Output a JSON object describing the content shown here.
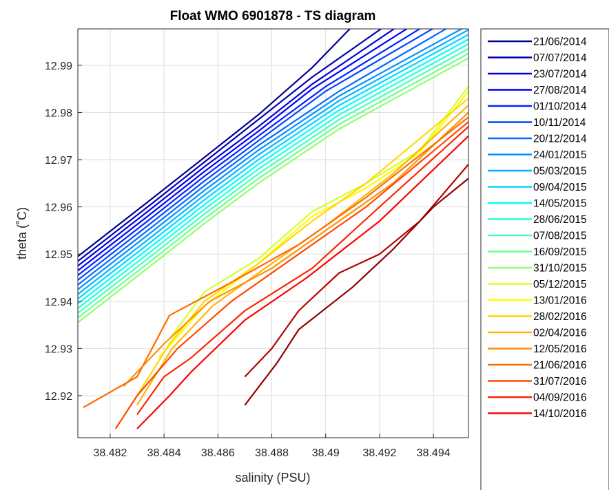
{
  "chart_data": {
    "type": "line",
    "title": "Float WMO 6901878 - TS diagram",
    "xlabel": "salinity (PSU)",
    "ylabel": "theta (˚C)",
    "xlim": [
      38.4808,
      38.4953
    ],
    "ylim": [
      12.9111,
      12.9977
    ],
    "xticks": [
      38.482,
      38.484,
      38.486,
      38.488,
      38.49,
      38.492,
      38.494
    ],
    "xtick_labels": [
      "38.482",
      "38.484",
      "38.486",
      "38.488",
      "38.49",
      "38.492",
      "38.494"
    ],
    "yticks": [
      12.92,
      12.93,
      12.94,
      12.95,
      12.96,
      12.97,
      12.98,
      12.99
    ],
    "ytick_labels": [
      "12.92",
      "12.93",
      "12.94",
      "12.95",
      "12.96",
      "12.97",
      "12.98",
      "12.99"
    ],
    "grid": true,
    "legend_position": "outside-right",
    "colormap": "jet",
    "series": [
      {
        "name": "21/06/2014",
        "color": "#00008f",
        "x": [
          38.4808,
          38.4835,
          38.4855,
          38.4875,
          38.4895,
          38.4912
        ],
        "y": [
          12.9495,
          12.9615,
          12.9705,
          12.9795,
          12.9895,
          12.9995
        ]
      },
      {
        "name": "07/07/2014",
        "color": "#0000b4",
        "x": [
          38.4808,
          38.4835,
          38.4855,
          38.4875,
          38.4895,
          38.4925
        ],
        "y": [
          12.9485,
          12.9605,
          12.9695,
          12.9785,
          12.9875,
          12.9995
        ]
      },
      {
        "name": "23/07/2014",
        "color": "#0000d8",
        "x": [
          38.4808,
          38.4835,
          38.4855,
          38.4875,
          38.4895,
          38.493
        ],
        "y": [
          12.9475,
          12.9595,
          12.9685,
          12.977,
          12.986,
          12.9995
        ]
      },
      {
        "name": "27/08/2014",
        "color": "#0000fc",
        "x": [
          38.4808,
          38.4835,
          38.4855,
          38.4875,
          38.4895,
          38.4935
        ],
        "y": [
          12.9465,
          12.9585,
          12.9675,
          12.976,
          12.985,
          12.9995
        ]
      },
      {
        "name": "01/10/2014",
        "color": "#0024ff",
        "x": [
          38.4808,
          38.4835,
          38.4855,
          38.4875,
          38.49,
          38.494
        ],
        "y": [
          12.9455,
          12.9575,
          12.9665,
          12.975,
          12.9855,
          12.9995
        ]
      },
      {
        "name": "10/11/2014",
        "color": "#0048ff",
        "x": [
          38.4808,
          38.4835,
          38.4855,
          38.4875,
          38.49,
          38.4945
        ],
        "y": [
          12.9445,
          12.9565,
          12.9655,
          12.974,
          12.9845,
          12.9995
        ]
      },
      {
        "name": "20/12/2014",
        "color": "#006cff",
        "x": [
          38.4808,
          38.4835,
          38.4855,
          38.4875,
          38.4905,
          38.495
        ],
        "y": [
          12.9435,
          12.9555,
          12.9645,
          12.973,
          12.9845,
          12.9995
        ]
      },
      {
        "name": "24/01/2015",
        "color": "#0090ff",
        "x": [
          38.4808,
          38.4835,
          38.4855,
          38.4875,
          38.4905,
          38.4953
        ],
        "y": [
          12.9425,
          12.9545,
          12.9635,
          12.972,
          12.9835,
          12.9985
        ]
      },
      {
        "name": "05/03/2015",
        "color": "#00b4ff",
        "x": [
          38.4808,
          38.4835,
          38.4855,
          38.4875,
          38.4905,
          38.4953
        ],
        "y": [
          12.9415,
          12.9535,
          12.9625,
          12.971,
          12.9825,
          12.9975
        ]
      },
      {
        "name": "09/04/2015",
        "color": "#00d8ff",
        "x": [
          38.4808,
          38.4835,
          38.4855,
          38.4875,
          38.4905,
          38.4953
        ],
        "y": [
          12.9405,
          12.9525,
          12.9615,
          12.97,
          12.9815,
          12.9965
        ]
      },
      {
        "name": "14/05/2015",
        "color": "#00fcff",
        "x": [
          38.4808,
          38.4835,
          38.4855,
          38.4875,
          38.4905,
          38.4953
        ],
        "y": [
          12.9395,
          12.9515,
          12.9605,
          12.969,
          12.9805,
          12.9955
        ]
      },
      {
        "name": "28/06/2015",
        "color": "#24ffdb",
        "x": [
          38.4808,
          38.4835,
          38.4855,
          38.4875,
          38.4905,
          38.4953
        ],
        "y": [
          12.9385,
          12.9505,
          12.9595,
          12.968,
          12.9795,
          12.9945
        ]
      },
      {
        "name": "07/08/2015",
        "color": "#48ffb7",
        "x": [
          38.4808,
          38.4835,
          38.4855,
          38.4875,
          38.4905,
          38.4953
        ],
        "y": [
          12.9375,
          12.9495,
          12.9585,
          12.967,
          12.9785,
          12.9935
        ]
      },
      {
        "name": "16/09/2015",
        "color": "#6cff93",
        "x": [
          38.4808,
          38.4835,
          38.4855,
          38.4875,
          38.4905,
          38.4953
        ],
        "y": [
          12.9365,
          12.9485,
          12.9575,
          12.966,
          12.9775,
          12.9925
        ]
      },
      {
        "name": "31/10/2015",
        "color": "#90ff6f",
        "x": [
          38.4808,
          38.4835,
          38.4855,
          38.4875,
          38.4905,
          38.4953
        ],
        "y": [
          12.9355,
          12.9475,
          12.9565,
          12.965,
          12.9765,
          12.9915
        ]
      },
      {
        "name": "05/12/2015",
        "color": "#d8ff27",
        "x": [
          38.4842,
          38.4855,
          38.4875,
          38.4895,
          38.4915,
          38.4935,
          38.4953
        ],
        "y": [
          12.932,
          12.942,
          12.949,
          12.959,
          12.965,
          12.972,
          12.9855
        ]
      },
      {
        "name": "13/01/2016",
        "color": "#fffc00",
        "x": [
          38.4838,
          38.4855,
          38.4875,
          38.4895,
          38.4915,
          38.4935,
          38.4953
        ],
        "y": [
          12.928,
          12.939,
          12.948,
          12.958,
          12.964,
          12.9715,
          12.9845
        ]
      },
      {
        "name": "28/02/2016",
        "color": "#ffd800",
        "x": [
          38.483,
          38.4842,
          38.4855,
          38.4875,
          38.4895,
          38.4915,
          38.4953
        ],
        "y": [
          12.92,
          12.931,
          12.94,
          12.948,
          12.957,
          12.965,
          12.983
        ]
      },
      {
        "name": "02/04/2016",
        "color": "#ffb400",
        "x": [
          38.483,
          38.4843,
          38.4858,
          38.488,
          38.49,
          38.4925,
          38.4953
        ],
        "y": [
          12.918,
          12.93,
          12.939,
          12.948,
          12.956,
          12.967,
          12.9815
        ]
      },
      {
        "name": "12/05/2016",
        "color": "#ff9000",
        "x": [
          38.4825,
          38.484,
          38.4857,
          38.488,
          38.49,
          38.4925,
          38.4953
        ],
        "y": [
          12.922,
          12.931,
          12.94,
          12.947,
          12.955,
          12.965,
          12.98
        ]
      },
      {
        "name": "21/06/2016",
        "color": "#ff6c00",
        "x": [
          38.481,
          38.483,
          38.4842,
          38.4865,
          38.489,
          38.4915,
          38.4953
        ],
        "y": [
          12.9175,
          12.924,
          12.937,
          12.944,
          12.952,
          12.962,
          12.979
        ]
      },
      {
        "name": "31/07/2016",
        "color": "#ff4800",
        "x": [
          38.4822,
          38.483,
          38.4845,
          38.4865,
          38.489,
          38.4915,
          38.4953
        ],
        "y": [
          12.913,
          12.92,
          12.93,
          12.94,
          12.95,
          12.96,
          12.978
        ]
      },
      {
        "name": "04/09/2016",
        "color": "#ff2400",
        "x": [
          38.483,
          38.484,
          38.485,
          38.487,
          38.4895,
          38.492,
          38.4953
        ],
        "y": [
          12.916,
          12.924,
          12.928,
          12.938,
          12.947,
          12.96,
          12.977
        ]
      },
      {
        "name": "14/10/2016",
        "color": "#fc0000",
        "x": [
          38.483,
          38.4842,
          38.485,
          38.487,
          38.4893,
          38.492,
          38.4953
        ],
        "y": [
          12.913,
          12.92,
          12.925,
          12.936,
          12.945,
          12.957,
          12.975
        ]
      },
      {
        "name": "",
        "color": "#b40000",
        "x": [
          38.487,
          38.488,
          38.489,
          38.4905,
          38.492,
          38.4935,
          38.4953
        ],
        "y": [
          12.924,
          12.93,
          12.938,
          12.946,
          12.95,
          12.957,
          12.969
        ]
      },
      {
        "name": "",
        "color": "#8f0000",
        "x": [
          38.487,
          38.4882,
          38.489,
          38.491,
          38.4925,
          38.494,
          38.4953
        ],
        "y": [
          12.918,
          12.927,
          12.934,
          12.943,
          12.951,
          12.96,
          12.966
        ]
      }
    ]
  }
}
